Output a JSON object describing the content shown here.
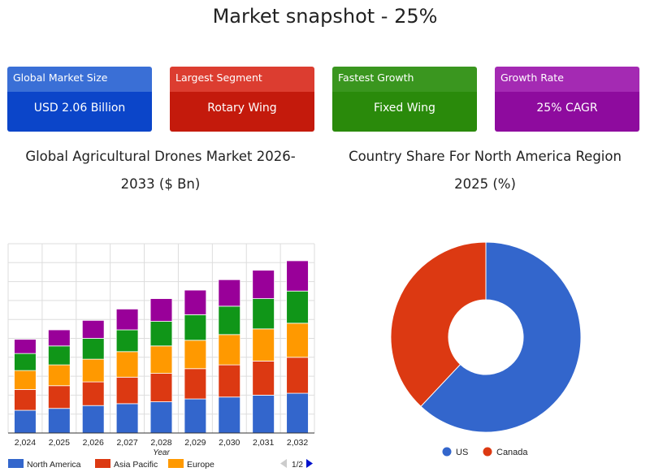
{
  "page_title": "Market snapshot - 25%",
  "cards": [
    {
      "label": "Global Market Size",
      "value": "USD 2.06 Billion",
      "header_color": "#3a6fd6",
      "value_color": "#0b45c9"
    },
    {
      "label": "Largest Segment",
      "value": "Rotary Wing",
      "header_color": "#dc3d30",
      "value_color": "#c41a0c"
    },
    {
      "label": "Fastest Growth",
      "value": "Fixed Wing",
      "header_color": "#3a961f",
      "value_color": "#2a8a0b"
    },
    {
      "label": "Growth Rate",
      "value": "25% CAGR",
      "header_color": "#a42ab3",
      "value_color": "#8e0b9e"
    }
  ],
  "chart_data": [
    {
      "type": "bar",
      "stacked": true,
      "title": "Global Agricultural Drones Market 2026-2033 ($ Bn)",
      "xlabel": "Year",
      "categories": [
        "2,024",
        "2,025",
        "2,026",
        "2,027",
        "2,028",
        "2,029",
        "2,030",
        "2,031",
        "2,032"
      ],
      "series": [
        {
          "name": "North America",
          "color": "#3366cc",
          "values": [
            1.2,
            1.3,
            1.45,
            1.55,
            1.65,
            1.8,
            1.9,
            2.0,
            2.1
          ]
        },
        {
          "name": "Asia Pacific",
          "color": "#dc3912",
          "values": [
            1.1,
            1.2,
            1.25,
            1.4,
            1.5,
            1.6,
            1.7,
            1.8,
            1.9
          ]
        },
        {
          "name": "Europe",
          "color": "#ff9900",
          "values": [
            1.0,
            1.1,
            1.2,
            1.35,
            1.45,
            1.5,
            1.6,
            1.7,
            1.8
          ]
        },
        {
          "name": "",
          "color": "#109618",
          "values": [
            0.9,
            1.0,
            1.1,
            1.15,
            1.3,
            1.35,
            1.5,
            1.6,
            1.7
          ]
        },
        {
          "name": "",
          "color": "#990099",
          "values": [
            0.75,
            0.85,
            0.95,
            1.1,
            1.2,
            1.3,
            1.4,
            1.5,
            1.6
          ]
        }
      ],
      "ylim": [
        0,
        10
      ],
      "y_gridlines": 10,
      "grid": true,
      "legend": {
        "position": "bottom",
        "page": "1/2"
      }
    },
    {
      "type": "pie",
      "donut": true,
      "title": "Country Share For North America Region 2025 (%)",
      "slices": [
        {
          "label": "US",
          "value": 62,
          "color": "#3366cc"
        },
        {
          "label": "Canada",
          "value": 38,
          "color": "#dc3912"
        }
      ],
      "legend": {
        "position": "bottom"
      }
    }
  ]
}
